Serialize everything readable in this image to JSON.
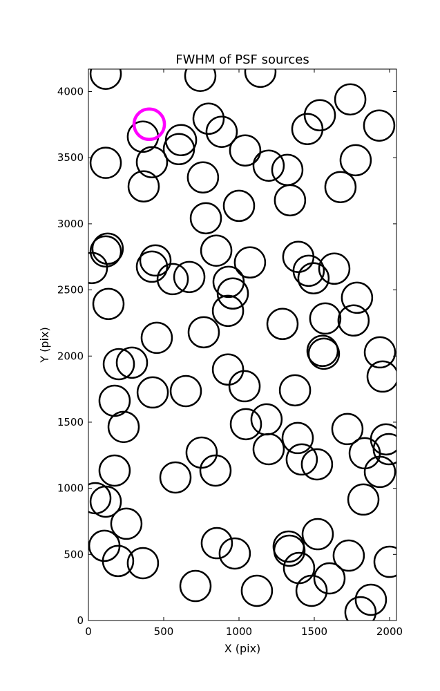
{
  "chart_data": {
    "type": "scatter",
    "title": "FWHM of PSF sources",
    "xlabel": "X (pix)",
    "ylabel": "Y (pix)",
    "xlim": [
      0,
      2046
    ],
    "ylim": [
      0,
      4170
    ],
    "xticks": [
      0,
      500,
      1000,
      1500,
      2000
    ],
    "yticks": [
      0,
      500,
      1000,
      1500,
      2000,
      2500,
      3000,
      3500,
      4000
    ],
    "marker": "circle",
    "grid": false,
    "series": [
      {
        "color": "#000000",
        "x": [
          115,
          743,
          1142,
          362,
          615,
          601,
          798,
          885,
          1041,
          1197,
          1321,
          1454,
          1537,
          1739,
          1931,
          1775,
          1674,
          1339,
          115,
          422,
          367,
          761,
          780,
          1000,
          128,
          115,
          23,
          849,
          1073,
          445,
          422,
          560,
          670,
          931,
          959,
          927,
          133,
          1394,
          1463,
          1495,
          1633,
          1784,
          1761,
          1573,
          1289,
          766,
          454,
          1555,
          1564,
          1936,
          1954,
          202,
          289,
          927,
          1037,
          174,
          427,
          647,
          1372,
          234,
          1046,
          1183,
          1720,
          1977,
          1995,
          1390,
          1417,
          1518,
          1197,
          752,
          844,
          1835,
          1936,
          174,
          578,
          46,
          115,
          252,
          1826,
          106,
          197,
          362,
          853,
          972,
          1330,
          1335,
          1523,
          1399,
          1482,
          1601,
          1729,
          2000,
          1876,
          1807,
          711,
          1119
        ],
        "y": [
          4135,
          4119,
          4150,
          3659,
          3633,
          3565,
          3795,
          3696,
          3555,
          3440,
          3408,
          3717,
          3821,
          3941,
          3743,
          3481,
          3278,
          3178,
          3461,
          3466,
          3283,
          3351,
          3042,
          3136,
          2812,
          2791,
          2666,
          2797,
          2708,
          2723,
          2676,
          2582,
          2598,
          2561,
          2473,
          2342,
          2394,
          2750,
          2645,
          2588,
          2661,
          2441,
          2269,
          2284,
          2243,
          2180,
          2138,
          2039,
          2018,
          2028,
          1845,
          1939,
          1950,
          1898,
          1772,
          1662,
          1725,
          1735,
          1741,
          1464,
          1485,
          1521,
          1448,
          1370,
          1296,
          1380,
          1218,
          1181,
          1296,
          1270,
          1134,
          1265,
          1124,
          1134,
          1082,
          925,
          899,
          732,
          915,
          565,
          450,
          434,
          585,
          507,
          559,
          528,
          653,
          397,
          225,
          319,
          491,
          444,
          157,
          63,
          261,
          225
        ]
      },
      {
        "color": "#ff00ff",
        "x": [
          404
        ],
        "y": [
          3753
        ]
      }
    ]
  }
}
